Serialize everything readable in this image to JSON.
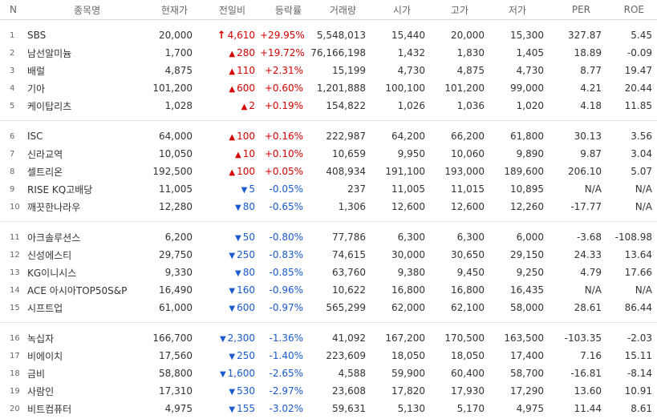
{
  "headers": [
    "N",
    "종목명",
    "현재가",
    "전일비",
    "등락률",
    "거래량",
    "시가",
    "고가",
    "저가",
    "PER",
    "ROE"
  ],
  "groups": [
    [
      {
        "n": "1",
        "name": "SBS",
        "price": "20,000",
        "dir": "upper",
        "chg": "4,610",
        "rate": "+29.95%",
        "vol": "5,548,013",
        "open": "15,440",
        "high": "20,000",
        "low": "15,300",
        "per": "327.87",
        "roe": "5.45"
      },
      {
        "n": "2",
        "name": "남선알미늄",
        "price": "1,700",
        "dir": "up",
        "chg": "280",
        "rate": "+19.72%",
        "vol": "76,166,198",
        "open": "1,432",
        "high": "1,830",
        "low": "1,405",
        "per": "18.89",
        "roe": "-0.09"
      },
      {
        "n": "3",
        "name": "배럴",
        "price": "4,875",
        "dir": "up",
        "chg": "110",
        "rate": "+2.31%",
        "vol": "15,199",
        "open": "4,730",
        "high": "4,875",
        "low": "4,730",
        "per": "8.77",
        "roe": "19.47"
      },
      {
        "n": "4",
        "name": "기아",
        "price": "101,200",
        "dir": "up",
        "chg": "600",
        "rate": "+0.60%",
        "vol": "1,201,888",
        "open": "100,100",
        "high": "101,200",
        "low": "99,000",
        "per": "4.21",
        "roe": "20.44"
      },
      {
        "n": "5",
        "name": "케이탑리츠",
        "price": "1,028",
        "dir": "up",
        "chg": "2",
        "rate": "+0.19%",
        "vol": "154,822",
        "open": "1,026",
        "high": "1,036",
        "low": "1,020",
        "per": "4.18",
        "roe": "11.85"
      }
    ],
    [
      {
        "n": "6",
        "name": "ISC",
        "price": "64,000",
        "dir": "up",
        "chg": "100",
        "rate": "+0.16%",
        "vol": "222,987",
        "open": "64,200",
        "high": "66,200",
        "low": "61,800",
        "per": "30.13",
        "roe": "3.56"
      },
      {
        "n": "7",
        "name": "신라교역",
        "price": "10,050",
        "dir": "up",
        "chg": "10",
        "rate": "+0.10%",
        "vol": "10,659",
        "open": "9,950",
        "high": "10,060",
        "low": "9,890",
        "per": "9.87",
        "roe": "3.04"
      },
      {
        "n": "8",
        "name": "셀트리온",
        "price": "192,500",
        "dir": "up",
        "chg": "100",
        "rate": "+0.05%",
        "vol": "408,934",
        "open": "191,100",
        "high": "193,000",
        "low": "189,600",
        "per": "206.10",
        "roe": "5.07"
      },
      {
        "n": "9",
        "name": "RISE KQ고배당",
        "price": "11,005",
        "dir": "down",
        "chg": "5",
        "rate": "-0.05%",
        "vol": "237",
        "open": "11,005",
        "high": "11,015",
        "low": "10,895",
        "per": "N/A",
        "roe": "N/A"
      },
      {
        "n": "10",
        "name": "깨끗한나라우",
        "price": "12,280",
        "dir": "down",
        "chg": "80",
        "rate": "-0.65%",
        "vol": "1,306",
        "open": "12,600",
        "high": "12,600",
        "low": "12,260",
        "per": "-17.77",
        "roe": "N/A"
      }
    ],
    [
      {
        "n": "11",
        "name": "아크솔루션스",
        "price": "6,200",
        "dir": "down",
        "chg": "50",
        "rate": "-0.80%",
        "vol": "77,786",
        "open": "6,300",
        "high": "6,300",
        "low": "6,000",
        "per": "-3.68",
        "roe": "-108.98"
      },
      {
        "n": "12",
        "name": "신성에스티",
        "price": "29,750",
        "dir": "down",
        "chg": "250",
        "rate": "-0.83%",
        "vol": "74,615",
        "open": "30,000",
        "high": "30,650",
        "low": "29,150",
        "per": "24.33",
        "roe": "13.64"
      },
      {
        "n": "13",
        "name": "KG이니시스",
        "price": "9,330",
        "dir": "down",
        "chg": "80",
        "rate": "-0.85%",
        "vol": "63,760",
        "open": "9,380",
        "high": "9,450",
        "low": "9,250",
        "per": "4.79",
        "roe": "17.66"
      },
      {
        "n": "14",
        "name": "ACE 아시아TOP50S&P",
        "price": "16,490",
        "dir": "down",
        "chg": "160",
        "rate": "-0.96%",
        "vol": "10,622",
        "open": "16,800",
        "high": "16,800",
        "low": "16,435",
        "per": "N/A",
        "roe": "N/A"
      },
      {
        "n": "15",
        "name": "시프트업",
        "price": "61,000",
        "dir": "down",
        "chg": "600",
        "rate": "-0.97%",
        "vol": "565,299",
        "open": "62,000",
        "high": "62,100",
        "low": "58,000",
        "per": "28.61",
        "roe": "86.44"
      }
    ],
    [
      {
        "n": "16",
        "name": "녹십자",
        "price": "166,700",
        "dir": "down",
        "chg": "2,300",
        "rate": "-1.36%",
        "vol": "41,092",
        "open": "167,200",
        "high": "170,500",
        "low": "163,500",
        "per": "-103.35",
        "roe": "-2.03"
      },
      {
        "n": "17",
        "name": "비에이치",
        "price": "17,560",
        "dir": "down",
        "chg": "250",
        "rate": "-1.40%",
        "vol": "223,609",
        "open": "18,050",
        "high": "18,050",
        "low": "17,400",
        "per": "7.16",
        "roe": "15.11"
      },
      {
        "n": "18",
        "name": "금비",
        "price": "58,800",
        "dir": "down",
        "chg": "1,600",
        "rate": "-2.65%",
        "vol": "4,588",
        "open": "59,900",
        "high": "60,400",
        "low": "58,700",
        "per": "-16.81",
        "roe": "-8.14"
      },
      {
        "n": "19",
        "name": "사람인",
        "price": "17,310",
        "dir": "down",
        "chg": "530",
        "rate": "-2.97%",
        "vol": "23,608",
        "open": "17,820",
        "high": "17,930",
        "low": "17,290",
        "per": "13.60",
        "roe": "10.91"
      },
      {
        "n": "20",
        "name": "비트컴퓨터",
        "price": "4,975",
        "dir": "down",
        "chg": "155",
        "rate": "-3.02%",
        "vol": "59,631",
        "open": "5,130",
        "high": "5,170",
        "low": "4,975",
        "per": "11.44",
        "roe": "8.61"
      }
    ]
  ],
  "colors": {
    "up": "#d60000",
    "down": "#1a5acf"
  }
}
